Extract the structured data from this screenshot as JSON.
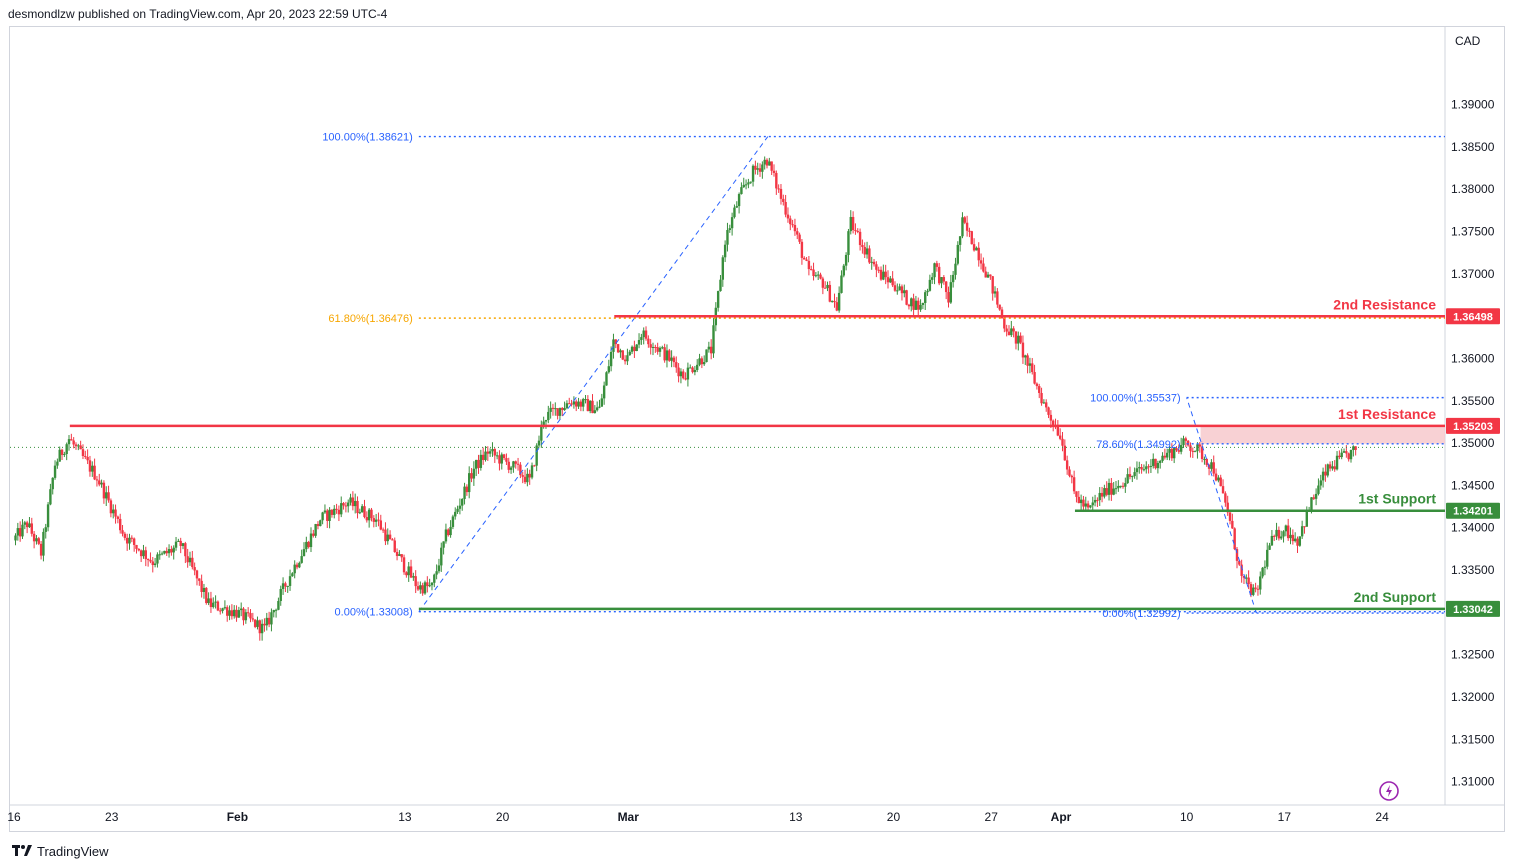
{
  "header": {
    "published_text": "desmondlzw published on TradingView.com, Apr 20, 2023 22:59 UTC-4"
  },
  "footer": {
    "brand": "TradingView"
  },
  "chart_data": {
    "type": "candlestick",
    "currency_label": "CAD",
    "y_axis": {
      "ylim": [
        1.30725,
        1.39915
      ],
      "ticks": [
        "1.39000",
        "1.38500",
        "1.38000",
        "1.37500",
        "1.37000",
        "1.36500",
        "1.36000",
        "1.35500",
        "1.35000",
        "1.34500",
        "1.34000",
        "1.33500",
        "1.33000",
        "1.32500",
        "1.32000",
        "1.31500",
        "1.31000"
      ]
    },
    "x_axis": {
      "first_date": "2023-01-16",
      "last_date": "2023-04-26",
      "ticks": [
        {
          "label": "16",
          "date": "2023-01-16"
        },
        {
          "label": "23",
          "date": "2023-01-23"
        },
        {
          "label": "Feb",
          "date": "2023-02-01",
          "bold": true
        },
        {
          "label": "13",
          "date": "2023-02-13"
        },
        {
          "label": "20",
          "date": "2023-02-20"
        },
        {
          "label": "Mar",
          "date": "2023-03-01",
          "bold": true
        },
        {
          "label": "13",
          "date": "2023-03-13"
        },
        {
          "label": "20",
          "date": "2023-03-20"
        },
        {
          "label": "27",
          "date": "2023-03-27"
        },
        {
          "label": "Apr",
          "date": "2023-04-01",
          "bold": true
        },
        {
          "label": "10",
          "date": "2023-04-10"
        },
        {
          "label": "17",
          "date": "2023-04-17"
        },
        {
          "label": "24",
          "date": "2023-04-24"
        }
      ]
    },
    "price_path": [
      {
        "date": "2023-01-16",
        "price": 1.3385
      },
      {
        "date": "2023-01-17",
        "price": 1.3405
      },
      {
        "date": "2023-01-18",
        "price": 1.337
      },
      {
        "date": "2023-01-19",
        "price": 1.3475
      },
      {
        "date": "2023-01-20",
        "price": 1.3505
      },
      {
        "date": "2023-01-22",
        "price": 1.346
      },
      {
        "date": "2023-01-24",
        "price": 1.339
      },
      {
        "date": "2023-01-26",
        "price": 1.336
      },
      {
        "date": "2023-01-28",
        "price": 1.338
      },
      {
        "date": "2023-01-30",
        "price": 1.331
      },
      {
        "date": "2023-02-01",
        "price": 1.33
      },
      {
        "date": "2023-02-03",
        "price": 1.328
      },
      {
        "date": "2023-02-05",
        "price": 1.335
      },
      {
        "date": "2023-02-07",
        "price": 1.341
      },
      {
        "date": "2023-02-09",
        "price": 1.343
      },
      {
        "date": "2023-02-11",
        "price": 1.341
      },
      {
        "date": "2023-02-13",
        "price": 1.3355
      },
      {
        "date": "2023-02-14",
        "price": 1.333
      },
      {
        "date": "2023-02-15",
        "price": 1.333
      },
      {
        "date": "2023-02-16",
        "price": 1.339
      },
      {
        "date": "2023-02-18",
        "price": 1.347
      },
      {
        "date": "2023-02-19",
        "price": 1.349
      },
      {
        "date": "2023-02-21",
        "price": 1.347
      },
      {
        "date": "2023-02-22",
        "price": 1.3455
      },
      {
        "date": "2023-02-23",
        "price": 1.353
      },
      {
        "date": "2023-02-25",
        "price": 1.355
      },
      {
        "date": "2023-02-27",
        "price": 1.354
      },
      {
        "date": "2023-02-28",
        "price": 1.362
      },
      {
        "date": "2023-03-01",
        "price": 1.36
      },
      {
        "date": "2023-03-02",
        "price": 1.363
      },
      {
        "date": "2023-03-04",
        "price": 1.36
      },
      {
        "date": "2023-03-05",
        "price": 1.358
      },
      {
        "date": "2023-03-07",
        "price": 1.361
      },
      {
        "date": "2023-03-08",
        "price": 1.374
      },
      {
        "date": "2023-03-09",
        "price": 1.379
      },
      {
        "date": "2023-03-10",
        "price": 1.382
      },
      {
        "date": "2023-03-11",
        "price": 1.3835
      },
      {
        "date": "2023-03-12",
        "price": 1.379
      },
      {
        "date": "2023-03-13",
        "price": 1.375
      },
      {
        "date": "2023-03-14",
        "price": 1.37
      },
      {
        "date": "2023-03-15",
        "price": 1.369
      },
      {
        "date": "2023-03-16",
        "price": 1.366
      },
      {
        "date": "2023-03-17",
        "price": 1.376
      },
      {
        "date": "2023-03-18",
        "price": 1.373
      },
      {
        "date": "2023-03-19",
        "price": 1.37
      },
      {
        "date": "2023-03-20",
        "price": 1.369
      },
      {
        "date": "2023-03-21",
        "price": 1.367
      },
      {
        "date": "2023-03-22",
        "price": 1.366
      },
      {
        "date": "2023-03-23",
        "price": 1.371
      },
      {
        "date": "2023-03-24",
        "price": 1.367
      },
      {
        "date": "2023-03-25",
        "price": 1.376
      },
      {
        "date": "2023-03-26",
        "price": 1.373
      },
      {
        "date": "2023-03-27",
        "price": 1.369
      },
      {
        "date": "2023-03-28",
        "price": 1.364
      },
      {
        "date": "2023-03-29",
        "price": 1.362
      },
      {
        "date": "2023-03-30",
        "price": 1.358
      },
      {
        "date": "2023-03-31",
        "price": 1.354
      },
      {
        "date": "2023-04-01",
        "price": 1.351
      },
      {
        "date": "2023-04-02",
        "price": 1.344
      },
      {
        "date": "2023-04-03",
        "price": 1.342
      },
      {
        "date": "2023-04-04",
        "price": 1.344
      },
      {
        "date": "2023-04-06",
        "price": 1.346
      },
      {
        "date": "2023-04-08",
        "price": 1.348
      },
      {
        "date": "2023-04-10",
        "price": 1.35
      },
      {
        "date": "2023-04-11",
        "price": 1.349
      },
      {
        "date": "2023-04-12",
        "price": 1.347
      },
      {
        "date": "2023-04-13",
        "price": 1.342
      },
      {
        "date": "2023-04-14",
        "price": 1.334
      },
      {
        "date": "2023-04-15",
        "price": 1.332
      },
      {
        "date": "2023-04-16",
        "price": 1.338
      },
      {
        "date": "2023-04-17",
        "price": 1.34
      },
      {
        "date": "2023-04-18",
        "price": 1.3385
      },
      {
        "date": "2023-04-19",
        "price": 1.343
      },
      {
        "date": "2023-04-20",
        "price": 1.3465
      },
      {
        "date": "2023-04-21",
        "price": 1.348
      },
      {
        "date": "2023-04-22",
        "price": 1.349
      }
    ],
    "levels": [
      {
        "name": "2nd Resistance",
        "value": "1.36498",
        "color": "#f23645",
        "from_date": "2023-02-28"
      },
      {
        "name": "1st Resistance",
        "value": "1.35203",
        "color": "#f23645",
        "from_date": "2023-01-20"
      },
      {
        "name": "1st Support",
        "value": "1.34201",
        "color": "#388e3c",
        "from_date": "2023-04-02"
      },
      {
        "name": "2nd Support",
        "value": "1.33042",
        "color": "#388e3c",
        "from_date": "2023-02-14"
      }
    ],
    "fib_left": {
      "start": {
        "date": "2023-02-14",
        "price": 1.33008
      },
      "end": {
        "date": "2023-03-11",
        "price": 1.38621
      },
      "labels": [
        {
          "text": "100.00%(1.38621)",
          "price": 1.38621,
          "color": "#2962ff"
        },
        {
          "text": "61.80%(1.36476)",
          "price": 1.36476,
          "color": "#f7a600"
        },
        {
          "text": "0.00%(1.33008)",
          "price": 1.33008,
          "color": "#2962ff"
        }
      ]
    },
    "fib_right": {
      "start": {
        "date": "2023-04-15",
        "price": 1.32992
      },
      "end": {
        "date": "2023-04-10",
        "price": 1.35537
      },
      "labels": [
        {
          "text": "100.00%(1.35537)",
          "price": 1.35537,
          "color": "#2962ff"
        },
        {
          "text": "78.60%(1.34992)",
          "price": 1.34992,
          "color": "#2962ff"
        },
        {
          "text": "0.00%(1.32992)",
          "price": 1.32992,
          "color": "#2962ff"
        }
      ]
    },
    "resistance_zone": {
      "from_date": "2023-04-11",
      "top": 1.35203,
      "bottom": 1.34992,
      "color": "#f7c9cc"
    },
    "last_price_line": 1.3495,
    "colors": {
      "up": "#388e3c",
      "down": "#f23645",
      "fib": "#2962ff",
      "fib_gold": "#f7a600",
      "axis_text": "#131722",
      "flash_icon": "#9c27b0"
    }
  }
}
